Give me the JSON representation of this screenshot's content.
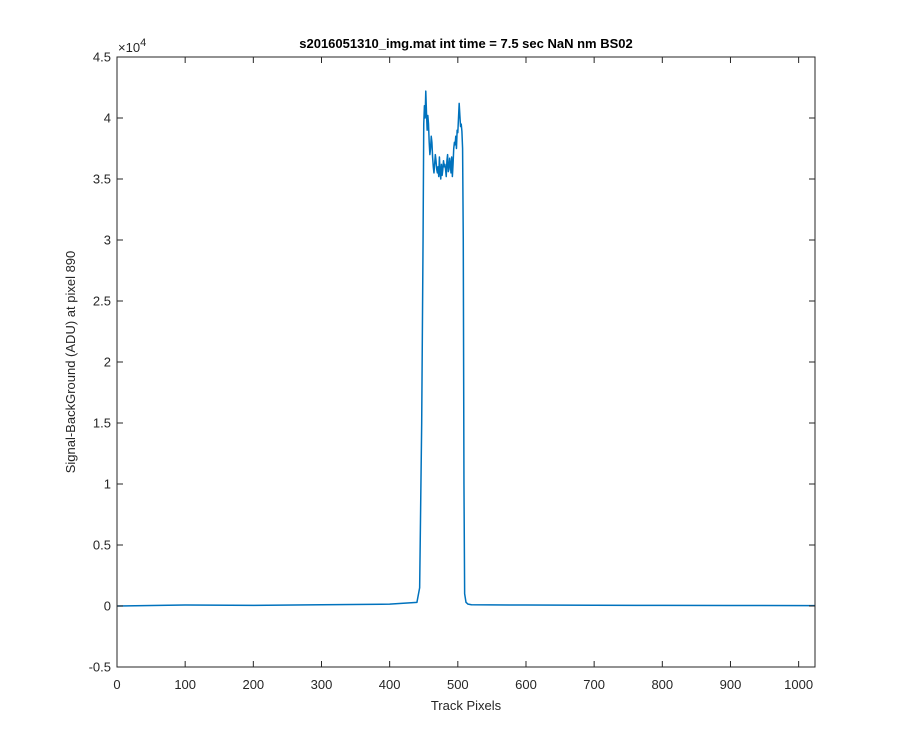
{
  "chart_data": {
    "type": "line",
    "title": "s2016051310_img.mat int time = 7.5 sec  NaN nm BS02",
    "xlabel": "Track Pixels",
    "ylabel": "Signal-BackGround (ADU) at pixel 890",
    "xlim": [
      0,
      1024
    ],
    "ylim": [
      -5000,
      45000
    ],
    "x_ticks": [
      0,
      100,
      200,
      300,
      400,
      500,
      600,
      700,
      800,
      900,
      1000
    ],
    "x_tick_labels": [
      "0",
      "100",
      "200",
      "300",
      "400",
      "500",
      "600",
      "700",
      "800",
      "900",
      "1000"
    ],
    "y_ticks": [
      -5000,
      0,
      5000,
      10000,
      15000,
      20000,
      25000,
      30000,
      35000,
      40000,
      45000
    ],
    "y_tick_labels": [
      "-0.5",
      "0",
      "0.5",
      "1",
      "1.5",
      "2",
      "2.5",
      "3",
      "3.5",
      "4",
      "4.5"
    ],
    "y_exponent_base": "×10",
    "y_exponent_power": "4",
    "grid": false,
    "box": true,
    "line_color": "#0072BD",
    "series": [
      {
        "x": [
          0,
          100,
          200,
          300,
          400,
          440,
          444,
          447,
          449,
          450,
          451,
          452,
          453,
          454,
          455,
          456,
          457,
          458,
          459,
          460,
          461,
          462,
          463,
          464,
          465,
          466,
          467,
          468,
          469,
          470,
          471,
          472,
          473,
          474,
          475,
          476,
          477,
          478,
          479,
          480,
          481,
          482,
          483,
          484,
          485,
          486,
          487,
          488,
          489,
          490,
          491,
          492,
          493,
          494,
          495,
          496,
          497,
          498,
          499,
          500,
          501,
          502,
          503,
          504,
          505,
          506,
          507,
          508,
          509,
          510,
          512,
          515,
          520,
          600,
          700,
          800,
          900,
          1024
        ],
        "y": [
          0,
          80,
          50,
          100,
          150,
          300,
          1500,
          15000,
          30000,
          39500,
          41000,
          40000,
          42200,
          40500,
          39000,
          40200,
          39500,
          38000,
          37000,
          37500,
          38500,
          38000,
          36800,
          36000,
          35500,
          36200,
          37000,
          36500,
          35800,
          35500,
          36000,
          35200,
          36800,
          35500,
          35000,
          36200,
          35300,
          35800,
          36500,
          36000,
          36200,
          35800,
          35200,
          36500,
          37000,
          35600,
          35800,
          36700,
          36200,
          35500,
          36800,
          35200,
          36200,
          37500,
          38000,
          37800,
          38500,
          37500,
          39000,
          38800,
          40000,
          41200,
          40200,
          39300,
          39500,
          38900,
          37500,
          30000,
          10000,
          1000,
          300,
          150,
          100,
          80,
          60,
          50,
          40,
          30
        ]
      }
    ]
  }
}
